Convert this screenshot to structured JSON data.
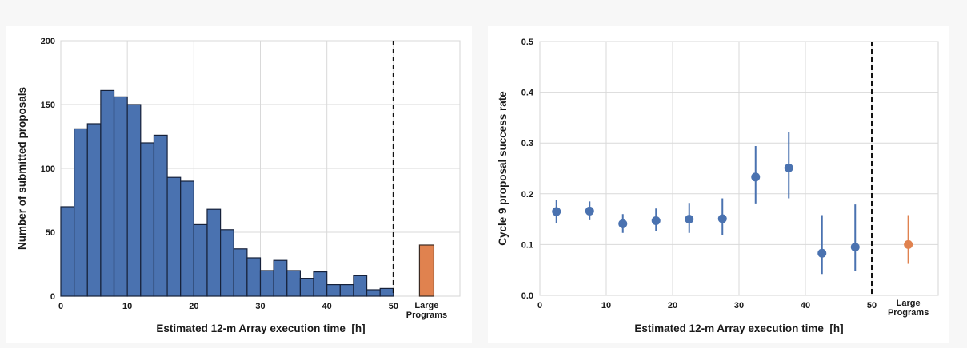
{
  "chart_data": [
    {
      "type": "bar",
      "subtype": "histogram",
      "xlabel": "Estimated 12-m Array execution time  [h]",
      "ylabel": "Number of submitted proposals",
      "xlim": [
        0,
        60
      ],
      "ylim": [
        0,
        200
      ],
      "xticks": [
        "0",
        "10",
        "20",
        "30",
        "40",
        "50"
      ],
      "yticks": [
        "0",
        "50",
        "100",
        "150",
        "200"
      ],
      "grid": true,
      "bin_width": 2,
      "bin_starts": [
        0,
        2,
        4,
        6,
        8,
        10,
        12,
        14,
        16,
        18,
        20,
        22,
        24,
        26,
        28,
        30,
        32,
        34,
        36,
        38,
        40,
        42,
        44,
        46,
        48
      ],
      "values": [
        70,
        131,
        135,
        161,
        156,
        150,
        120,
        126,
        93,
        90,
        56,
        68,
        52,
        37,
        30,
        20,
        28,
        20,
        14,
        19,
        9,
        9,
        16,
        5,
        6
      ],
      "series_color": "#4a72b0",
      "extra_bar": {
        "label_line1": "Large",
        "label_line2": "Programs",
        "value": 40,
        "color": "#e0824f"
      },
      "cutoff_line": 50
    },
    {
      "type": "scatter",
      "subtype": "errorbar",
      "xlabel": "Estimated 12-m Array execution time  [h]",
      "ylabel": "Cycle 9 proposal success rate",
      "xlim": [
        0,
        60
      ],
      "ylim": [
        0,
        0.5
      ],
      "xticks": [
        "0",
        "10",
        "20",
        "30",
        "40",
        "50"
      ],
      "yticks": [
        "0.0",
        "0.1",
        "0.2",
        "0.3",
        "0.4",
        "0.5"
      ],
      "grid": true,
      "series_color": "#4a72b0",
      "points": [
        {
          "x": 2.5,
          "y": 0.165,
          "lo": 0.143,
          "hi": 0.188
        },
        {
          "x": 7.5,
          "y": 0.166,
          "lo": 0.148,
          "hi": 0.185
        },
        {
          "x": 12.5,
          "y": 0.141,
          "lo": 0.123,
          "hi": 0.16
        },
        {
          "x": 17.5,
          "y": 0.147,
          "lo": 0.126,
          "hi": 0.171
        },
        {
          "x": 22.5,
          "y": 0.15,
          "lo": 0.123,
          "hi": 0.182
        },
        {
          "x": 27.5,
          "y": 0.151,
          "lo": 0.118,
          "hi": 0.191
        },
        {
          "x": 32.5,
          "y": 0.233,
          "lo": 0.181,
          "hi": 0.294
        },
        {
          "x": 37.5,
          "y": 0.251,
          "lo": 0.191,
          "hi": 0.321
        },
        {
          "x": 42.5,
          "y": 0.083,
          "lo": 0.042,
          "hi": 0.158
        },
        {
          "x": 47.5,
          "y": 0.095,
          "lo": 0.048,
          "hi": 0.179
        }
      ],
      "extra_point": {
        "label_line1": "Large",
        "label_line2": "Programs",
        "y": 0.1,
        "lo": 0.062,
        "hi": 0.158,
        "color": "#e0824f"
      },
      "cutoff_line": 50
    }
  ]
}
